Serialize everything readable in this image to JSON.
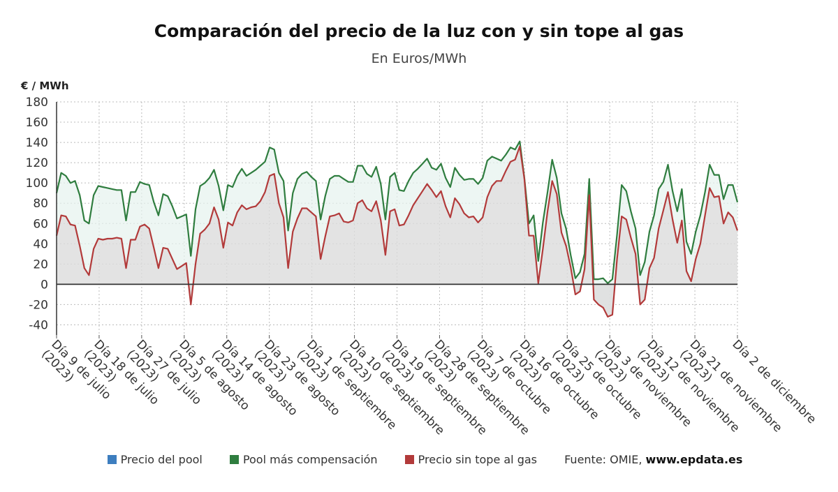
{
  "title": "Comparación del precio de la luz con y sin tope al gas",
  "subtitle": "En Euros/MWh",
  "source_label": "Fuente: OMIE,",
  "source_site": "www.epdata.es",
  "colors": {
    "pool": "#3d7ebf",
    "compensation": "#2f7d3f",
    "no_cap": "#b23a3a",
    "grid": "#bbbbbb",
    "zero": "#333333"
  },
  "chart_data": {
    "type": "line",
    "ylabel": "€ / MWh",
    "ylim": [
      -50,
      180
    ],
    "yticks": [
      180,
      160,
      140,
      120,
      100,
      80,
      60,
      40,
      20,
      0,
      -20,
      -40
    ],
    "x_start": "2023-07-09",
    "x_end": "2023-12-02",
    "grid": true,
    "legend_position": "bottom",
    "tick_labels": [
      {
        "line1": "Día 9 de julio",
        "line2": "(2023)"
      },
      {
        "line1": "Día 18 de julio",
        "line2": "(2023)"
      },
      {
        "line1": "Día 27 de julio",
        "line2": "(2023)"
      },
      {
        "line1": "Día 5 de agosto",
        "line2": "(2023)"
      },
      {
        "line1": "Día 14 de agosto",
        "line2": "(2023)"
      },
      {
        "line1": "Día 23 de agosto",
        "line2": "(2023)"
      },
      {
        "line1": "Día 1 de septiembre",
        "line2": "(2023)"
      },
      {
        "line1": "Día 10 de septiembre",
        "line2": "(2023)"
      },
      {
        "line1": "Día 19 de septiembre",
        "line2": "(2023)"
      },
      {
        "line1": "Día 28 de septiembre",
        "line2": "(2023)"
      },
      {
        "line1": "Día 7 de octubre",
        "line2": "(2023)"
      },
      {
        "line1": "Día 16 de octubre",
        "line2": "(2023)"
      },
      {
        "line1": "Día 25 de octubre",
        "line2": "(2023)"
      },
      {
        "line1": "Día 3 de noviembre",
        "line2": "(2023)"
      },
      {
        "line1": "Día 12 de noviembre",
        "line2": "(2023)"
      },
      {
        "line1": "Día 21 de noviembre",
        "line2": "(2023)"
      },
      {
        "line1": "Día 2 de diciembre",
        "line2": ""
      }
    ],
    "series": [
      {
        "name": "Precio del pool",
        "color_key": "pool",
        "values": []
      },
      {
        "name": "Pool más compensación",
        "color_key": "compensation",
        "values": [
          90,
          110,
          107,
          100,
          102,
          88,
          63,
          60,
          88,
          97,
          96,
          95,
          94,
          93,
          93,
          63,
          91,
          91,
          101,
          99,
          98,
          81,
          68,
          89,
          87,
          77,
          65,
          67,
          69,
          28,
          74,
          97,
          100,
          105,
          113,
          97,
          73,
          98,
          96,
          107,
          114,
          107,
          110,
          113,
          117,
          121,
          135,
          133,
          110,
          102,
          53,
          90,
          104,
          109,
          111,
          106,
          102,
          64,
          87,
          104,
          107,
          107,
          104,
          101,
          101,
          117,
          117,
          109,
          106,
          116,
          99,
          64,
          106,
          110,
          93,
          92,
          102,
          110,
          114,
          119,
          124,
          115,
          113,
          119,
          105,
          96,
          115,
          108,
          103,
          104,
          104,
          99,
          105,
          122,
          126,
          124,
          122,
          128,
          135,
          133,
          141,
          105,
          60,
          68,
          23,
          61,
          91,
          123,
          105,
          70,
          55,
          29,
          6,
          12,
          30,
          104,
          5,
          5,
          6,
          1,
          5,
          49,
          98,
          92,
          72,
          55,
          9,
          22,
          52,
          68,
          94,
          101,
          118,
          92,
          72,
          94,
          42,
          30,
          52,
          68,
          91,
          118,
          108,
          108,
          84,
          98,
          98,
          81
        ]
      },
      {
        "name": "Precio sin tope al gas",
        "color_key": "no_cap",
        "values": [
          48,
          68,
          67,
          59,
          58,
          38,
          16,
          9,
          35,
          45,
          44,
          45,
          45,
          46,
          45,
          16,
          44,
          44,
          57,
          59,
          55,
          36,
          16,
          36,
          35,
          25,
          15,
          18,
          21,
          -20,
          20,
          50,
          54,
          60,
          76,
          64,
          36,
          61,
          58,
          71,
          78,
          74,
          76,
          77,
          82,
          91,
          107,
          109,
          80,
          66,
          16,
          52,
          65,
          75,
          75,
          71,
          67,
          25,
          47,
          67,
          68,
          70,
          62,
          61,
          63,
          80,
          83,
          75,
          72,
          82,
          63,
          29,
          72,
          74,
          58,
          59,
          68,
          78,
          85,
          92,
          99,
          93,
          86,
          92,
          77,
          66,
          85,
          79,
          70,
          66,
          67,
          61,
          66,
          86,
          97,
          102,
          102,
          112,
          121,
          123,
          136,
          104,
          48,
          48,
          1,
          35,
          72,
          102,
          89,
          51,
          38,
          17,
          -10,
          -7,
          15,
          88,
          -15,
          -20,
          -23,
          -32,
          -30,
          25,
          67,
          64,
          46,
          30,
          -20,
          -15,
          16,
          26,
          55,
          73,
          91,
          64,
          41,
          63,
          13,
          3,
          25,
          40,
          68,
          95,
          86,
          87,
          60,
          71,
          66,
          53
        ]
      }
    ]
  }
}
